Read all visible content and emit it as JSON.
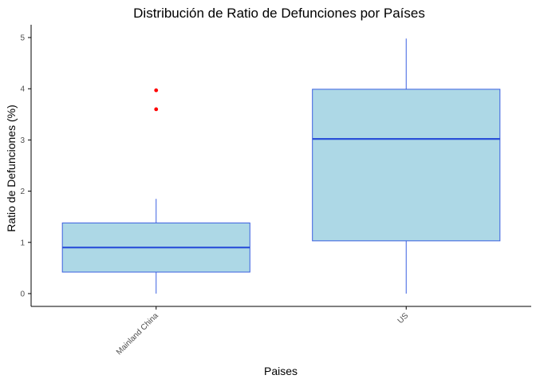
{
  "chart_data": {
    "type": "boxplot",
    "title": "Distribución de Ratio de Defunciones por Países",
    "xlabel": "Paises",
    "ylabel": "Ratio de Defunciones (%)",
    "ylim": [
      -0.25,
      5.25
    ],
    "yticks": [
      0,
      1,
      2,
      3,
      4,
      5
    ],
    "categories": [
      "Mainland China",
      "US"
    ],
    "boxes": [
      {
        "category": "Mainland China",
        "min": 0.0,
        "q1": 0.42,
        "median": 0.9,
        "q3": 1.38,
        "max": 1.85,
        "outliers": [
          3.6,
          3.97
        ]
      },
      {
        "category": "US",
        "min": 0.0,
        "q1": 1.03,
        "median": 3.02,
        "q3": 3.99,
        "max": 4.98,
        "outliers": []
      }
    ],
    "colors": {
      "box_fill": "#add8e6",
      "box_line": "#3a5fe0",
      "median": "#2b50d8",
      "outlier": "#ff0000",
      "axis": "#000000",
      "tick_text": "#4d4d4d"
    }
  }
}
